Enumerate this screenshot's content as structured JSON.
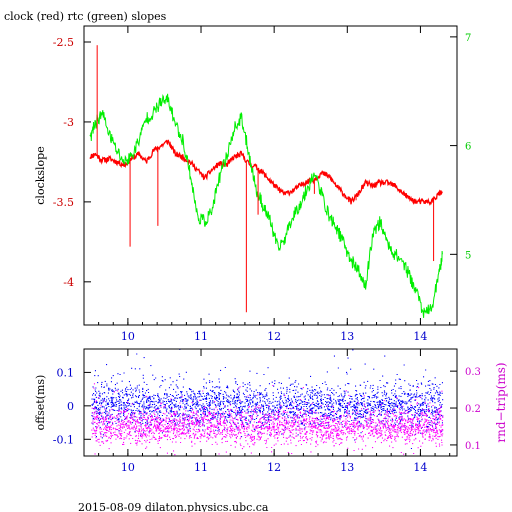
{
  "chart_data": [
    {
      "type": "line",
      "title": "clock (red) rtc (green) slopes",
      "ylabel": "clockslope",
      "x_ticks": [
        "10",
        "11",
        "12",
        "13",
        "14"
      ],
      "xlim": [
        9.4,
        14.5
      ],
      "left_axis": {
        "ticks": [
          "-2.5",
          "-3",
          "-3.5",
          "-4"
        ],
        "ylim": [
          -4.27,
          -2.4
        ],
        "color": "#cc0000"
      },
      "right_axis": {
        "ticks": [
          "7",
          "6",
          "5"
        ],
        "ylim": [
          4.35,
          7.1
        ],
        "color": "#00cc00"
      },
      "series": [
        {
          "color": "#ff0000",
          "x": [
            9.48,
            9.55,
            9.65,
            9.75,
            9.85,
            9.95,
            10.05,
            10.15,
            10.25,
            10.35,
            10.45,
            10.55,
            10.65,
            10.75,
            10.85,
            10.95,
            11.05,
            11.15,
            11.25,
            11.35,
            11.45,
            11.55,
            11.65,
            11.75,
            11.85,
            11.95,
            12.05,
            12.15,
            12.25,
            12.35,
            12.45,
            12.55,
            12.65,
            12.75,
            12.85,
            12.95,
            13.05,
            13.15,
            13.25,
            13.35,
            13.45,
            13.55,
            13.65,
            13.75,
            13.85,
            13.95,
            14.05,
            14.15,
            14.25,
            14.3
          ],
          "y": [
            -3.22,
            -3.2,
            -3.24,
            -3.23,
            -3.25,
            -3.27,
            -3.23,
            -3.2,
            -3.25,
            -3.18,
            -3.15,
            -3.12,
            -3.2,
            -3.22,
            -3.25,
            -3.3,
            -3.35,
            -3.3,
            -3.26,
            -3.27,
            -3.22,
            -3.2,
            -3.26,
            -3.28,
            -3.32,
            -3.37,
            -3.42,
            -3.45,
            -3.43,
            -3.4,
            -3.37,
            -3.36,
            -3.32,
            -3.34,
            -3.4,
            -3.45,
            -3.5,
            -3.45,
            -3.38,
            -3.4,
            -3.38,
            -3.38,
            -3.4,
            -3.44,
            -3.48,
            -3.5,
            -3.5,
            -3.5,
            -3.45,
            -3.44
          ]
        },
        {
          "color": "#00ee00",
          "x": [
            9.48,
            9.55,
            9.65,
            9.75,
            9.85,
            9.95,
            10.05,
            10.15,
            10.25,
            10.35,
            10.45,
            10.55,
            10.65,
            10.75,
            10.85,
            10.95,
            11.05,
            11.15,
            11.25,
            11.35,
            11.45,
            11.55,
            11.65,
            11.75,
            11.85,
            11.95,
            12.05,
            12.15,
            12.25,
            12.35,
            12.45,
            12.55,
            12.65,
            12.75,
            12.85,
            12.95,
            13.05,
            13.15,
            13.25,
            13.35,
            13.45,
            13.55,
            13.65,
            13.75,
            13.85,
            13.95,
            14.05,
            14.15,
            14.25,
            14.3
          ],
          "y": [
            6.05,
            6.2,
            6.3,
            6.1,
            5.95,
            5.85,
            5.9,
            6.05,
            6.25,
            6.3,
            6.4,
            6.42,
            6.2,
            6.05,
            5.75,
            5.35,
            5.3,
            5.4,
            5.7,
            5.9,
            6.15,
            6.25,
            5.95,
            5.6,
            5.45,
            5.3,
            5.05,
            5.15,
            5.35,
            5.45,
            5.6,
            5.75,
            5.55,
            5.35,
            5.25,
            5.1,
            4.95,
            4.85,
            4.7,
            5.2,
            5.3,
            5.1,
            5.0,
            4.95,
            4.8,
            4.65,
            4.45,
            4.5,
            4.8,
            5.0
          ]
        }
      ],
      "spikes": [
        {
          "x": 9.58,
          "y": -2.52
        },
        {
          "x": 10.03,
          "y": -3.78
        },
        {
          "x": 10.41,
          "y": -3.65
        },
        {
          "x": 11.62,
          "y": -4.19
        },
        {
          "x": 11.78,
          "y": -3.58
        },
        {
          "x": 12.55,
          "y": -3.45
        },
        {
          "x": 13.12,
          "y": -3.49
        },
        {
          "x": 14.18,
          "y": -3.87
        }
      ]
    },
    {
      "type": "scatter",
      "ylabel": "offset(ms)",
      "y2label": "rnd−trip(ms)",
      "x_ticks": [
        "10",
        "11",
        "12",
        "13",
        "14"
      ],
      "xlim": [
        9.4,
        14.5
      ],
      "left_axis": {
        "ticks": [
          "0.1",
          "0",
          "-0.1"
        ],
        "ylim": [
          -0.15,
          0.17
        ],
        "color": "#0000cc"
      },
      "right_axis": {
        "ticks": [
          "0.3",
          "0.2",
          "0.1"
        ],
        "ylim": [
          0.07,
          0.36
        ],
        "color": "#cc00cc"
      },
      "series": [
        {
          "color": "#0000ff",
          "center": 0.0,
          "spread": 0.035,
          "x": [
            9.5,
            14.3
          ]
        },
        {
          "color": "#ff00ff",
          "center": 0.15,
          "spread": 0.025,
          "x": [
            9.5,
            14.3
          ]
        }
      ]
    }
  ],
  "footer": "2015-08-09  dilaton.physics.ubc.ca"
}
